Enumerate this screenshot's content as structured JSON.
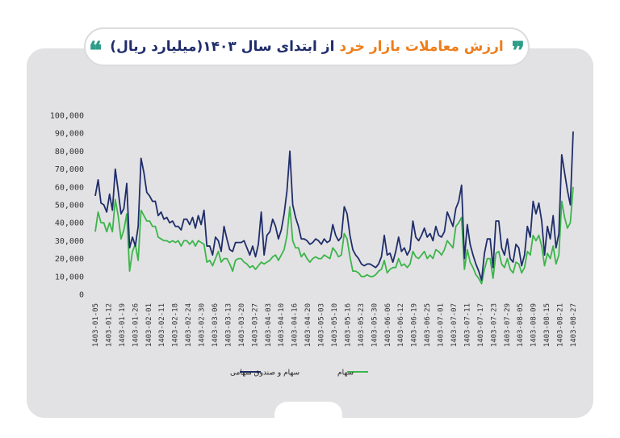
{
  "header": {
    "title_part1": "ارزش معاملات بازار خرد",
    "title_part2": " از ابتدای سال ۱۴۰۳(میلیارد ریال)",
    "quote_left": "❝",
    "quote_right": "❞"
  },
  "colors": {
    "series_total": "#1f2d6b",
    "series_stock": "#3cb54a",
    "title_orange": "#ef7d1a",
    "title_navy": "#1f2d6b",
    "quote": "#2e9e8a",
    "card_bg": "#e2e2e4"
  },
  "chart_data": {
    "type": "line",
    "title": "ارزش معاملات بازار خرد از ابتدای سال ۱۴۰۳(میلیارد ریال)",
    "xlabel": "",
    "ylabel": "",
    "ylim": [
      0,
      100000
    ],
    "yticks": [
      "0",
      "10,000",
      "20,000",
      "30,000",
      "40,000",
      "50,000",
      "60,000",
      "70,000",
      "80,000",
      "90,000",
      "100,000"
    ],
    "xtick_labels": [
      "1403-01-05",
      "1403-01-12",
      "1403-01-19",
      "1403-01-26",
      "1403-02-01",
      "1403-02-11",
      "1403-02-18",
      "1403-02-24",
      "1403-02-30",
      "1403-03-06",
      "1403-03-13",
      "1403-03-20",
      "1403-03-27",
      "1403-04-03",
      "1403-04-10",
      "1403-04-16",
      "1403-04-20",
      "1403-05-03",
      "1403-05-10",
      "1403-05-16",
      "1403-05-23",
      "1403-05-30",
      "1403-06-06",
      "1403-06-12",
      "1403-06-19",
      "1403-06-25",
      "1403-07-01",
      "1403-07-07",
      "1403-07-11",
      "1403-07-17",
      "1403-07-23",
      "1403-07-29",
      "1403-08-05",
      "1403-08-09",
      "1403-08-15",
      "1403-08-21",
      "1403-08-27"
    ],
    "grid": false,
    "legend": "bottom",
    "series": [
      {
        "name": "سهام و صندوق سهامی",
        "values": [
          55000,
          64000,
          51000,
          50000,
          46000,
          56000,
          47000,
          70000,
          58000,
          45000,
          48000,
          62000,
          26000,
          32000,
          27000,
          38000,
          76000,
          68000,
          57000,
          55000,
          52000,
          52000,
          44000,
          46000,
          42000,
          43000,
          40000,
          41000,
          38000,
          38000,
          36000,
          42000,
          42000,
          39000,
          43000,
          37000,
          44000,
          39000,
          47000,
          27000,
          27000,
          22000,
          32000,
          30000,
          24000,
          38000,
          31000,
          25000,
          24000,
          29000,
          29000,
          29000,
          30000,
          26000,
          22000,
          27000,
          21000,
          28000,
          46000,
          22000,
          33000,
          35000,
          42000,
          38000,
          31000,
          36000,
          45000,
          58000,
          80000,
          50000,
          43000,
          38000,
          31000,
          31000,
          30000,
          28000,
          29000,
          31000,
          30000,
          28000,
          31000,
          29000,
          30000,
          39000,
          33000,
          30000,
          32000,
          49000,
          45000,
          33000,
          25000,
          22000,
          20000,
          17000,
          16000,
          17000,
          17000,
          16000,
          15000,
          17000,
          21000,
          33000,
          22000,
          23000,
          18000,
          24000,
          32000,
          24000,
          26000,
          22000,
          25000,
          41000,
          32000,
          30000,
          33000,
          37000,
          32000,
          34000,
          30000,
          38000,
          33000,
          32000,
          35000,
          46000,
          42000,
          38000,
          48000,
          52000,
          61000,
          20000,
          39000,
          28000,
          22000,
          17000,
          13000,
          8000,
          23000,
          31000,
          31000,
          15000,
          41000,
          41000,
          26000,
          22000,
          31000,
          20000,
          18000,
          28000,
          26000,
          16000,
          22000,
          38000,
          32000,
          52000,
          45000,
          51000,
          41000,
          22000,
          38000,
          31000,
          44000,
          26000,
          34000,
          78000,
          68000,
          58000,
          50000,
          91000
        ]
      },
      {
        "name": "سهام",
        "values": [
          35000,
          46000,
          40000,
          40000,
          35000,
          40000,
          35000,
          53000,
          44000,
          31000,
          36000,
          45000,
          13000,
          24000,
          28000,
          19000,
          47000,
          44000,
          41000,
          41000,
          38000,
          38000,
          32000,
          31000,
          30000,
          30000,
          29000,
          30000,
          29000,
          30000,
          27000,
          30000,
          30000,
          28000,
          30000,
          27000,
          30000,
          29000,
          28000,
          18000,
          19000,
          16000,
          20000,
          24000,
          18000,
          20000,
          20000,
          17000,
          13000,
          19000,
          20000,
          20000,
          18000,
          17000,
          15000,
          16000,
          14000,
          16000,
          18000,
          17000,
          18000,
          19000,
          21000,
          22000,
          19000,
          22000,
          25000,
          33000,
          49000,
          30000,
          26000,
          26000,
          21000,
          23000,
          20000,
          18000,
          20000,
          21000,
          20000,
          20000,
          22000,
          21000,
          20000,
          26000,
          24000,
          21000,
          22000,
          34000,
          31000,
          21000,
          13000,
          13000,
          12000,
          10000,
          10000,
          11000,
          10000,
          10000,
          11000,
          13000,
          14000,
          19000,
          12000,
          14000,
          15000,
          15000,
          20000,
          16000,
          17000,
          15000,
          17000,
          24000,
          21000,
          20000,
          22000,
          24000,
          20000,
          22000,
          20000,
          25000,
          24000,
          22000,
          25000,
          30000,
          28000,
          26000,
          38000,
          40000,
          43000,
          14000,
          25000,
          18000,
          15000,
          11000,
          9000,
          6000,
          14000,
          20000,
          20000,
          9000,
          23000,
          24000,
          17000,
          15000,
          20000,
          14000,
          12000,
          18000,
          17000,
          12000,
          15000,
          24000,
          22000,
          33000,
          30000,
          33000,
          27000,
          16000,
          23000,
          20000,
          27000,
          17000,
          22000,
          52000,
          43000,
          37000,
          40000,
          60000
        ]
      }
    ]
  }
}
